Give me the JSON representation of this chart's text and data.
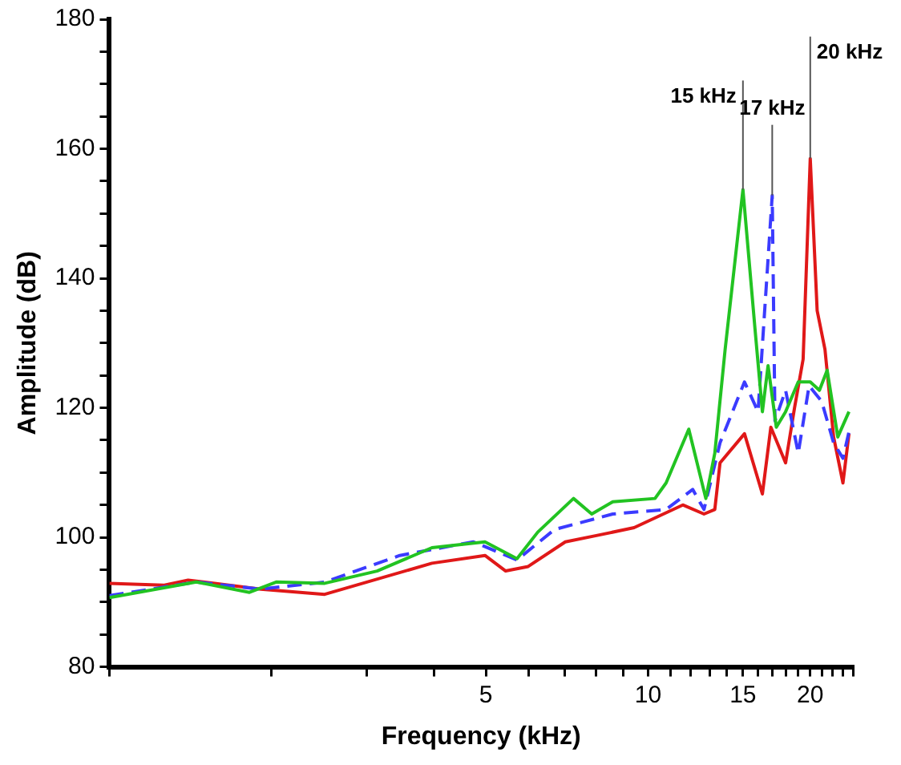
{
  "chart_data": {
    "type": "line",
    "xlabel": "Frequency (kHz)",
    "ylabel": "Amplitude (dB)",
    "log": "x",
    "grid": false,
    "legend": false,
    "marker": "none",
    "xlim": [
      1,
      24
    ],
    "xticks": [
      {
        "value": 1,
        "label": null
      },
      {
        "value": 2,
        "label": null
      },
      {
        "value": 3,
        "label": null
      },
      {
        "value": 4,
        "label": null
      },
      5,
      {
        "value": 6,
        "label": null
      },
      {
        "value": 7,
        "label": null
      },
      {
        "value": 8,
        "label": null
      },
      {
        "value": 9,
        "label": null
      },
      10,
      {
        "value": 11,
        "label": null
      },
      {
        "value": 12,
        "label": null
      },
      {
        "value": 13,
        "label": null
      },
      {
        "value": 14,
        "label": null
      },
      15,
      {
        "value": 16,
        "label": null
      },
      {
        "value": 17,
        "label": null
      },
      {
        "value": 18,
        "label": null
      },
      {
        "value": 19,
        "label": null
      },
      20,
      {
        "value": 21,
        "label": null
      },
      {
        "value": 22,
        "label": null
      },
      {
        "value": 23,
        "label": null
      },
      {
        "value": 24,
        "label": null
      }
    ],
    "ylim": [
      80,
      180
    ],
    "yticks": [
      80,
      {
        "value": 85,
        "label": null
      },
      {
        "value": 90,
        "label": null
      },
      {
        "value": 95,
        "label": null
      },
      100,
      {
        "value": 105,
        "label": null
      },
      {
        "value": 110,
        "label": null
      },
      {
        "value": 115,
        "label": null
      },
      120,
      {
        "value": 125,
        "label": null
      },
      {
        "value": 130,
        "label": null
      },
      {
        "value": 135,
        "label": null
      },
      140,
      {
        "value": 145,
        "label": null
      },
      {
        "value": 150,
        "label": null
      },
      {
        "value": 155,
        "label": null
      },
      160,
      {
        "value": 165,
        "label": null
      },
      {
        "value": 170,
        "label": null
      },
      {
        "value": 175,
        "label": null
      },
      180
    ],
    "series": [
      {
        "color": "#22c322",
        "line_style": "solid",
        "x": [
          1.0,
          1.45,
          1.82,
          2.04,
          2.51,
          3.14,
          3.97,
          4.98,
          5.71,
          6.24,
          7.27,
          7.86,
          8.6,
          10.3,
          10.8,
          11.9,
          12.8,
          13.3,
          13.9,
          15.0,
          15.8,
          16.3,
          16.7,
          17.3,
          18.0,
          19.0,
          20.0,
          20.8,
          21.5,
          22.5,
          23.6
        ],
        "values": [
          90.7,
          93.1,
          91.5,
          93.1,
          92.9,
          94.8,
          98.4,
          99.3,
          96.7,
          100.8,
          106,
          103.6,
          105.5,
          106,
          108.4,
          116.7,
          106,
          113,
          129,
          153.7,
          132,
          119.4,
          126.5,
          117,
          119.4,
          124,
          124,
          122.7,
          125.8,
          115.5,
          119.4
        ]
      },
      {
        "color": "#3b3bff",
        "line_style": "dashed",
        "x": [
          1.0,
          1.45,
          1.91,
          2.51,
          3.46,
          4.74,
          5.71,
          6.7,
          8.6,
          10.8,
          12.1,
          12.7,
          13.6,
          15.1,
          16.0,
          17.0,
          17.2,
          18.0,
          19.0,
          19.9,
          21.0,
          22.1,
          23.0,
          23.6
        ],
        "values": [
          91,
          93.1,
          92,
          93.1,
          97.2,
          99.3,
          96.5,
          101.2,
          103.6,
          104.3,
          107.4,
          104.3,
          114.6,
          124,
          119.4,
          152.8,
          118,
          122.7,
          113,
          123.4,
          121,
          114.6,
          112.2,
          116.3
        ]
      },
      {
        "color": "#e01818",
        "line_style": "solid",
        "x": [
          1.0,
          1.26,
          1.4,
          1.91,
          2.51,
          3.97,
          4.98,
          5.44,
          5.99,
          7.02,
          8.05,
          9.42,
          11.6,
          12.7,
          13.3,
          13.6,
          15.1,
          16.3,
          16.9,
          18.0,
          18.7,
          19.4,
          20.0,
          20.6,
          21.3,
          22.1,
          23.0,
          23.6
        ],
        "values": [
          92.9,
          92.6,
          93.4,
          92,
          91.2,
          96,
          97.2,
          94.8,
          95.5,
          99.3,
          100.3,
          101.5,
          105,
          103.6,
          104.3,
          111.5,
          116,
          106.7,
          117,
          111.5,
          120,
          127.5,
          158.5,
          135,
          129,
          115.5,
          108.4,
          116
        ]
      }
    ],
    "annotations": [
      {
        "text": "15 kHz",
        "x": 15,
        "y": 153.7
      },
      {
        "text": "17 kHz",
        "x": 17,
        "y": 152.8
      },
      {
        "text": "20 kHz",
        "x": 20,
        "y": 158.5
      }
    ]
  }
}
